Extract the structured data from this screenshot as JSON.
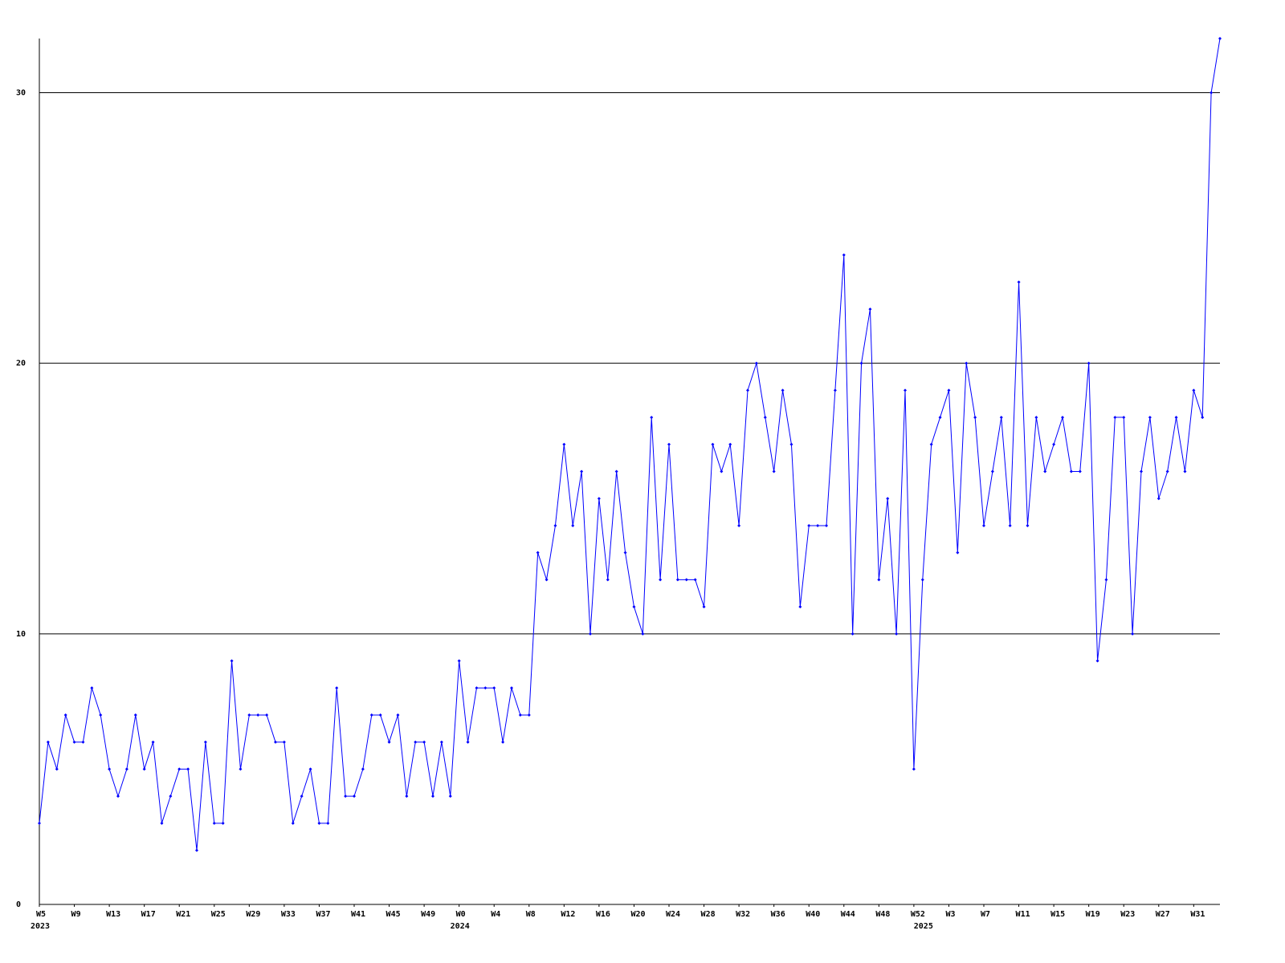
{
  "chart_data": {
    "type": "line",
    "color": "#0000ff",
    "grid": true,
    "ylim": [
      0,
      32
    ],
    "yticks": [
      0,
      10,
      20,
      30
    ],
    "categories": [
      "W5",
      null,
      null,
      null,
      "W9",
      null,
      null,
      null,
      "W13",
      null,
      null,
      null,
      "W17",
      null,
      null,
      null,
      "W21",
      null,
      null,
      null,
      "W25",
      null,
      null,
      null,
      "W29",
      null,
      null,
      null,
      "W33",
      null,
      null,
      null,
      "W37",
      null,
      null,
      null,
      "W41",
      null,
      null,
      null,
      "W45",
      null,
      null,
      null,
      "W49",
      null,
      null,
      null,
      "W0",
      null,
      null,
      null,
      "W4",
      null,
      null,
      null,
      "W8",
      null,
      null,
      null,
      "W12",
      null,
      null,
      null,
      "W16",
      null,
      null,
      null,
      "W20",
      null,
      null,
      null,
      "W24",
      null,
      null,
      null,
      "W28",
      null,
      null,
      null,
      "W32",
      null,
      null,
      null,
      "W36",
      null,
      null,
      null,
      "W40",
      null,
      null,
      null,
      "W44",
      null,
      null,
      null,
      "W48",
      null,
      null,
      null,
      "W52",
      null,
      null,
      null,
      "W3",
      null,
      null,
      null,
      "W7",
      null,
      null,
      null,
      "W11",
      null,
      null,
      null,
      "W15",
      null,
      null,
      null,
      "W19",
      null,
      null,
      null,
      "W23",
      null,
      null,
      null,
      "W27",
      null,
      null,
      null,
      "W31",
      null,
      null,
      null
    ],
    "category_groups": [
      "2023",
      null,
      null,
      null,
      null,
      null,
      null,
      null,
      null,
      null,
      null,
      null,
      null,
      null,
      null,
      null,
      null,
      null,
      null,
      null,
      null,
      null,
      null,
      null,
      null,
      null,
      null,
      null,
      null,
      null,
      null,
      null,
      null,
      null,
      null,
      null,
      null,
      null,
      null,
      null,
      null,
      null,
      null,
      null,
      null,
      null,
      null,
      null,
      "2024",
      null,
      null,
      null,
      null,
      null,
      null,
      null,
      null,
      null,
      null,
      null,
      null,
      null,
      null,
      null,
      null,
      null,
      null,
      null,
      null,
      null,
      null,
      null,
      null,
      null,
      null,
      null,
      null,
      null,
      null,
      null,
      null,
      null,
      null,
      null,
      null,
      null,
      null,
      null,
      null,
      null,
      null,
      null,
      null,
      null,
      null,
      null,
      null,
      null,
      null,
      null,
      null,
      "2025",
      null,
      null,
      null,
      null,
      null,
      null,
      null,
      null,
      null,
      null,
      null,
      null,
      null,
      null,
      null,
      null,
      null,
      null,
      null,
      null,
      null,
      null,
      null,
      null,
      null,
      null,
      null,
      null,
      null,
      null,
      null,
      null,
      null,
      null
    ],
    "values": [
      3,
      6,
      5,
      7,
      6,
      6,
      8,
      7,
      5,
      4,
      5,
      7,
      5,
      6,
      3,
      4,
      5,
      5,
      2,
      6,
      3,
      3,
      9,
      5,
      7,
      7,
      7,
      6,
      6,
      3,
      4,
      5,
      3,
      3,
      8,
      4,
      4,
      5,
      7,
      7,
      6,
      7,
      4,
      6,
      6,
      4,
      6,
      4,
      9,
      6,
      8,
      8,
      8,
      6,
      8,
      7,
      7,
      13,
      12,
      14,
      17,
      14,
      16,
      10,
      15,
      12,
      16,
      13,
      11,
      10,
      18,
      12,
      17,
      12,
      12,
      12,
      11,
      17,
      16,
      17,
      14,
      19,
      20,
      18,
      16,
      19,
      17,
      11,
      14,
      14,
      14,
      19,
      24,
      10,
      20,
      22,
      12,
      15,
      10,
      19,
      5,
      12,
      17,
      18,
      19,
      13,
      20,
      18,
      14,
      16,
      18,
      14,
      23,
      14,
      18,
      16,
      17,
      18,
      16,
      16,
      20,
      9,
      12,
      18,
      18,
      10,
      16,
      18,
      15,
      16,
      18,
      16,
      19,
      18,
      30,
      32
    ]
  }
}
